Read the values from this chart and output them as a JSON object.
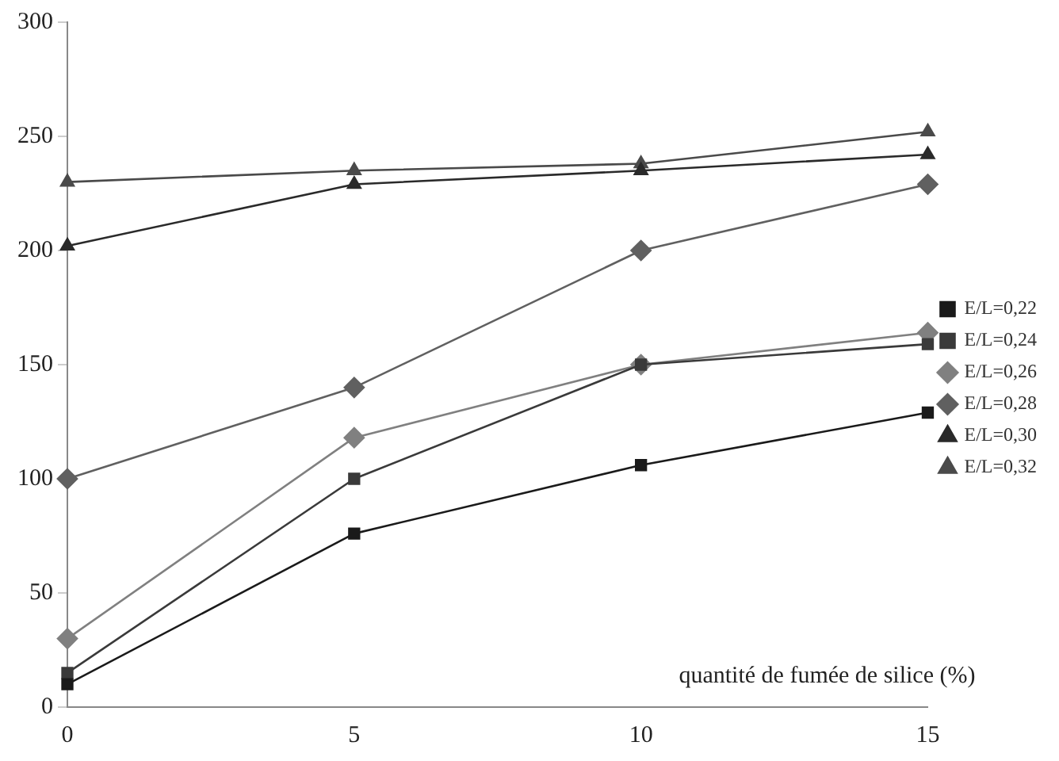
{
  "chart_data": {
    "type": "line",
    "xlabel": "quantité de fumée de silice (%)",
    "x": [
      0,
      5,
      10,
      15
    ],
    "xlim": [
      0,
      15
    ],
    "xticks": [
      0,
      5,
      10,
      15
    ],
    "ylim": [
      0,
      300
    ],
    "yticks": [
      0,
      50,
      100,
      150,
      200,
      250,
      300
    ],
    "grid": false,
    "legend": "right",
    "line_style": "solid",
    "series": [
      {
        "name": "E/L=0,22",
        "color": "#1a1a1a",
        "marker": "square",
        "values": [
          10,
          76,
          106,
          129
        ]
      },
      {
        "name": "E/L=0,24",
        "color": "#3a3a3a",
        "marker": "square",
        "values": [
          15,
          100,
          150,
          159
        ]
      },
      {
        "name": "E/L=0,26",
        "color": "#808080",
        "marker": "diamond",
        "values": [
          30,
          118,
          150,
          164
        ]
      },
      {
        "name": "E/L=0,28",
        "color": "#606060",
        "marker": "diamond",
        "values": [
          100,
          140,
          200,
          229
        ]
      },
      {
        "name": "E/L=0,30",
        "color": "#2a2a2a",
        "marker": "triangle",
        "values": [
          202,
          229,
          235,
          242
        ]
      },
      {
        "name": "E/L=0,32",
        "color": "#4a4a4a",
        "marker": "triangle",
        "values": [
          230,
          235,
          238,
          252
        ]
      }
    ]
  }
}
